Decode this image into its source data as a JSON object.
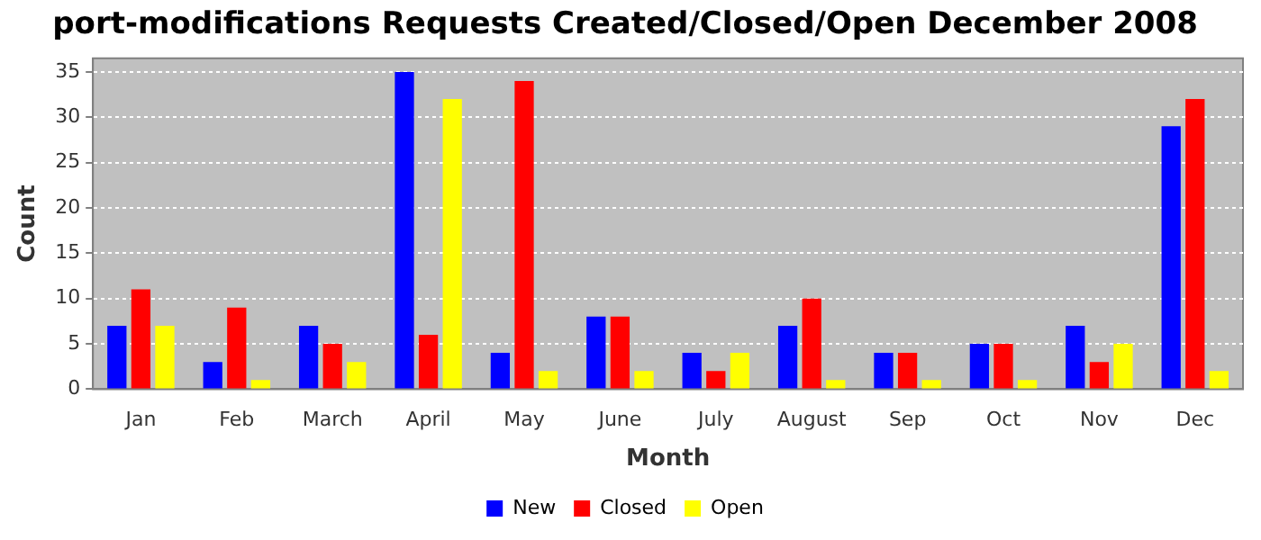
{
  "chart_data": {
    "type": "bar",
    "title": "port-modifications Requests Created/Closed/Open December 2008",
    "xlabel": "Month",
    "ylabel": "Count",
    "categories": [
      "Jan",
      "Feb",
      "March",
      "April",
      "May",
      "June",
      "July",
      "August",
      "Sep",
      "Oct",
      "Nov",
      "Dec"
    ],
    "series": [
      {
        "name": "New",
        "color": "#0000ff",
        "values": [
          7,
          3,
          7,
          35,
          4,
          8,
          4,
          7,
          4,
          5,
          7,
          29
        ]
      },
      {
        "name": "Closed",
        "color": "#ff0000",
        "values": [
          11,
          9,
          5,
          6,
          34,
          8,
          2,
          10,
          4,
          5,
          3,
          32
        ]
      },
      {
        "name": "Open",
        "color": "#ffff00",
        "values": [
          7,
          1,
          3,
          32,
          2,
          2,
          4,
          1,
          1,
          1,
          5,
          2
        ]
      }
    ],
    "ylim": [
      0,
      36.5
    ],
    "yticks": [
      0,
      5,
      10,
      15,
      20,
      25,
      30,
      35
    ],
    "grid": "y",
    "legend": "bottom"
  }
}
